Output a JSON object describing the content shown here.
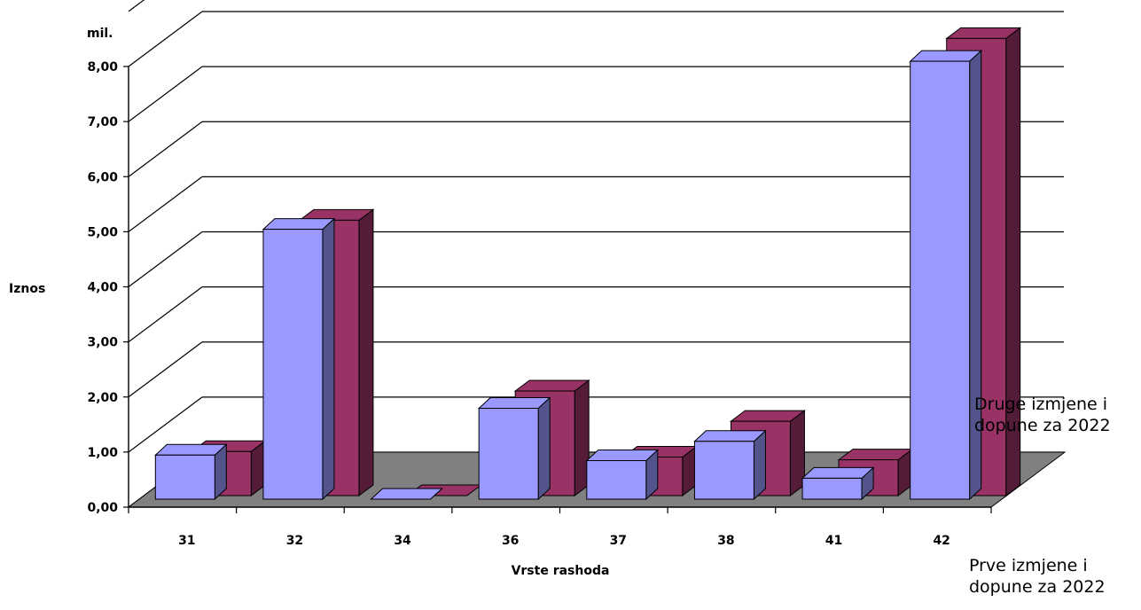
{
  "chart_data": {
    "type": "bar",
    "categories": [
      "31",
      "32",
      "34",
      "36",
      "37",
      "38",
      "41",
      "42"
    ],
    "series": [
      {
        "name": "Prve izmjene i dopune za 2022",
        "values": [
          0.8,
          4.9,
          0.0,
          1.65,
          0.7,
          1.05,
          0.38,
          7.95
        ],
        "color": "#9999ff"
      },
      {
        "name": "Druge izmjene i dopune za 2022",
        "values": [
          0.8,
          5.0,
          0.0,
          1.9,
          0.7,
          1.35,
          0.65,
          8.3
        ],
        "color": "#993366"
      }
    ],
    "xlabel": "Vrste rashoda",
    "ylabel": "Iznos",
    "unit_label": "mil.",
    "ylim": [
      0,
      8
    ],
    "y_ticks": [
      "0,00",
      "1,00",
      "2,00",
      "3,00",
      "4,00",
      "5,00",
      "6,00",
      "7,00",
      "8,00"
    ],
    "grid": true,
    "style": "3d-clustered-columns",
    "legend_placement": "right"
  }
}
